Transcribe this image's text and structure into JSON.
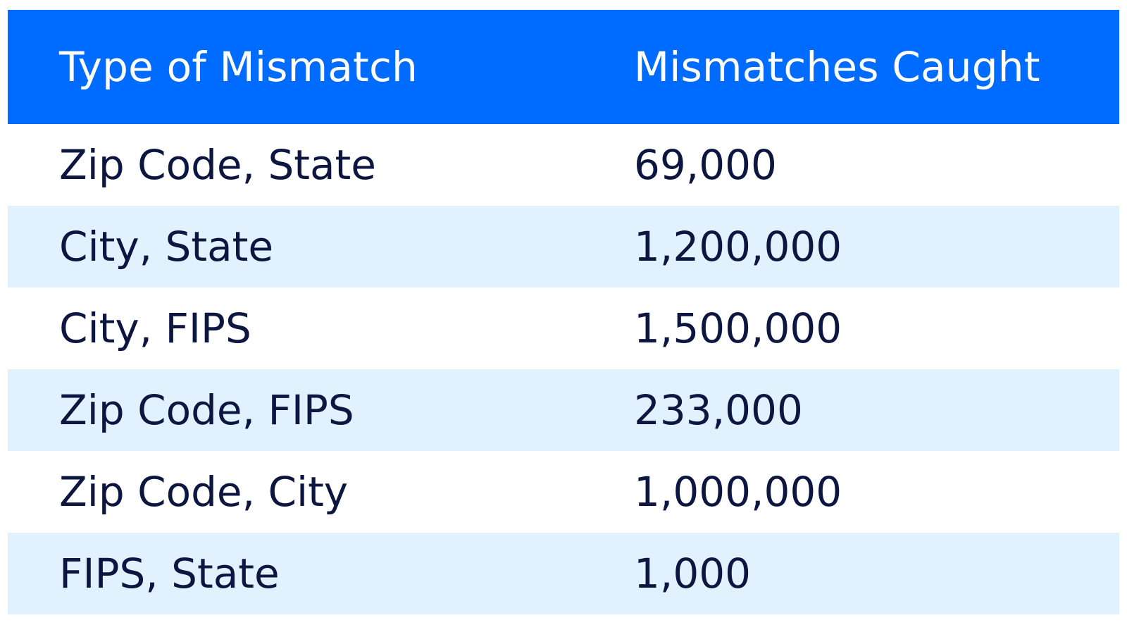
{
  "chart_data": {
    "type": "table",
    "columns": [
      "Type of Mismatch",
      "Mismatches Caught"
    ],
    "rows": [
      {
        "type": "Zip Code, State",
        "caught": "69,000"
      },
      {
        "type": "City, State",
        "caught": "1,200,000"
      },
      {
        "type": "City, FIPS",
        "caught": "1,500,000"
      },
      {
        "type": "Zip Code, FIPS",
        "caught": "233,000"
      },
      {
        "type": "Zip Code, City",
        "caught": "1,000,000"
      },
      {
        "type": "FIPS, State",
        "caught": "1,000"
      }
    ]
  },
  "colors": {
    "header_bg": "#006bff",
    "header_text": "#ffffff",
    "alt_row_bg": "#e1f1fd",
    "body_text": "#0d1640"
  }
}
